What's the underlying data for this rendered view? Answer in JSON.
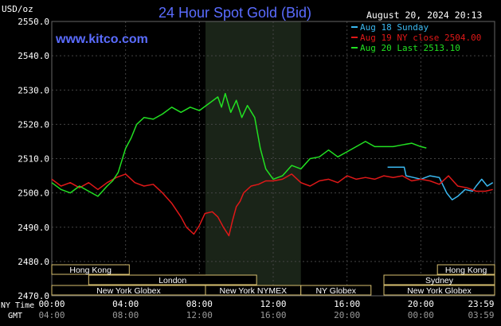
{
  "header": {
    "unit_label": "USD/oz",
    "title": "24 Hour Spot Gold (Bid)",
    "timestamp": "August 20, 2024 20:13",
    "site": "www.kitco.com"
  },
  "legend": [
    {
      "label": "Aug 18 Sunday",
      "color": "#3ab8f0"
    },
    {
      "label": "Aug 19 NY close 2504.00",
      "color": "#e01818"
    },
    {
      "label": "Aug 20 Last 2513.10",
      "color": "#22e022"
    }
  ],
  "axis": {
    "ny_time_label": "NY Time",
    "gmt_label": "GMT",
    "ny_ticks": [
      "00:00",
      "04:00",
      "08:00",
      "12:00",
      "16:00",
      "20:00",
      "23:59"
    ],
    "gmt_ticks": [
      "04:00",
      "08:00",
      "12:00",
      "16:00",
      "20:00",
      "00:00",
      "03:59"
    ]
  },
  "sessions": [
    {
      "label": "Hong Kong"
    },
    {
      "label": "London"
    },
    {
      "label": "New York Globex"
    },
    {
      "label": "New York NYMEX"
    },
    {
      "label": "NY Globex"
    },
    {
      "label": "Hong Kong"
    },
    {
      "label": "Sydney"
    },
    {
      "label": "New York Globex"
    }
  ],
  "chart_data": {
    "type": "line",
    "title": "24 Hour Spot Gold (Bid)",
    "ylabel": "USD/oz",
    "xlabel": "NY Time",
    "ylim": [
      2470,
      2550
    ],
    "xlim_hours": [
      0,
      24
    ],
    "yticks": [
      "2550.0",
      "2540.0",
      "2530.0",
      "2520.0",
      "2510.0",
      "2500.0",
      "2490.0",
      "2480.0",
      "2470.0"
    ],
    "colors": {
      "background": "#000000",
      "nymex_shade": "#1a2418",
      "grid": "#444444"
    },
    "series": [
      {
        "name": "Aug 18 Sunday",
        "color": "#3ab8f0",
        "x": [
          18.2,
          19.1,
          19.2,
          19.6,
          20.0,
          20.5,
          21.0,
          21.4,
          21.7,
          22.0,
          22.4,
          22.8,
          23.0,
          23.3,
          23.6,
          23.9
        ],
        "y": [
          2507.5,
          2507.5,
          2505.0,
          2504.5,
          2504.0,
          2505.0,
          2504.5,
          2500.0,
          2498.0,
          2499.0,
          2501.0,
          2500.5,
          2502.0,
          2504.0,
          2502.0,
          2503.0
        ]
      },
      {
        "name": "Aug 19 NY close 2504.00",
        "color": "#e01818",
        "x": [
          0.0,
          0.5,
          1.0,
          1.5,
          2.0,
          2.5,
          3.0,
          3.5,
          4.0,
          4.5,
          5.0,
          5.5,
          6.0,
          6.5,
          7.0,
          7.3,
          7.7,
          8.0,
          8.3,
          8.7,
          9.0,
          9.3,
          9.6,
          9.8,
          10.0,
          10.2,
          10.4,
          10.8,
          11.2,
          11.6,
          12.0,
          12.5,
          13.0,
          13.5,
          14.0,
          14.5,
          15.0,
          15.5,
          16.0,
          16.5,
          17.0,
          17.5,
          18.0,
          18.5,
          19.0,
          19.5,
          20.0,
          20.5,
          21.0,
          21.5,
          22.0,
          22.5,
          23.0,
          23.5,
          23.9
        ],
        "y": [
          2504.0,
          2502.0,
          2503.0,
          2501.5,
          2503.0,
          2501.0,
          2503.0,
          2504.5,
          2505.5,
          2503.0,
          2502.0,
          2502.5,
          2500.0,
          2497.0,
          2493.0,
          2490.0,
          2488.0,
          2490.5,
          2494.0,
          2494.5,
          2493.0,
          2490.0,
          2487.5,
          2492.0,
          2496.0,
          2497.5,
          2500.0,
          2502.0,
          2502.5,
          2503.5,
          2503.5,
          2504.0,
          2505.5,
          2503.0,
          2502.0,
          2503.5,
          2504.0,
          2503.0,
          2505.0,
          2504.0,
          2504.5,
          2504.0,
          2505.0,
          2504.5,
          2505.0,
          2503.5,
          2504.0,
          2503.5,
          2502.5,
          2505.0,
          2502.0,
          2501.5,
          2500.5,
          2500.5,
          2501.0
        ]
      },
      {
        "name": "Aug 20 Last 2513.10",
        "color": "#22e022",
        "x": [
          0.0,
          0.5,
          1.0,
          1.5,
          2.0,
          2.5,
          3.0,
          3.3,
          3.6,
          4.0,
          4.3,
          4.6,
          5.0,
          5.5,
          6.0,
          6.5,
          7.0,
          7.5,
          8.0,
          8.5,
          9.0,
          9.2,
          9.4,
          9.7,
          10.0,
          10.3,
          10.6,
          11.0,
          11.3,
          11.6,
          12.0,
          12.5,
          13.0,
          13.5,
          14.0,
          14.5,
          15.0,
          15.5,
          16.0,
          16.5,
          17.0,
          17.5,
          18.0,
          18.5,
          19.0,
          19.5,
          20.0,
          20.3
        ],
        "y": [
          2503.0,
          2501.0,
          2500.0,
          2502.0,
          2500.5,
          2499.0,
          2502.0,
          2503.5,
          2506.0,
          2513.0,
          2516.0,
          2520.0,
          2522.0,
          2521.5,
          2523.0,
          2525.0,
          2523.5,
          2525.0,
          2524.0,
          2526.0,
          2528.0,
          2525.0,
          2529.0,
          2523.5,
          2527.0,
          2522.0,
          2525.5,
          2522.0,
          2513.0,
          2507.0,
          2504.0,
          2505.0,
          2508.0,
          2507.0,
          2510.0,
          2510.5,
          2512.5,
          2510.5,
          2512.0,
          2513.5,
          2515.0,
          2513.5,
          2513.5,
          2513.5,
          2514.0,
          2514.5,
          2513.5,
          2513.1
        ]
      }
    ]
  }
}
